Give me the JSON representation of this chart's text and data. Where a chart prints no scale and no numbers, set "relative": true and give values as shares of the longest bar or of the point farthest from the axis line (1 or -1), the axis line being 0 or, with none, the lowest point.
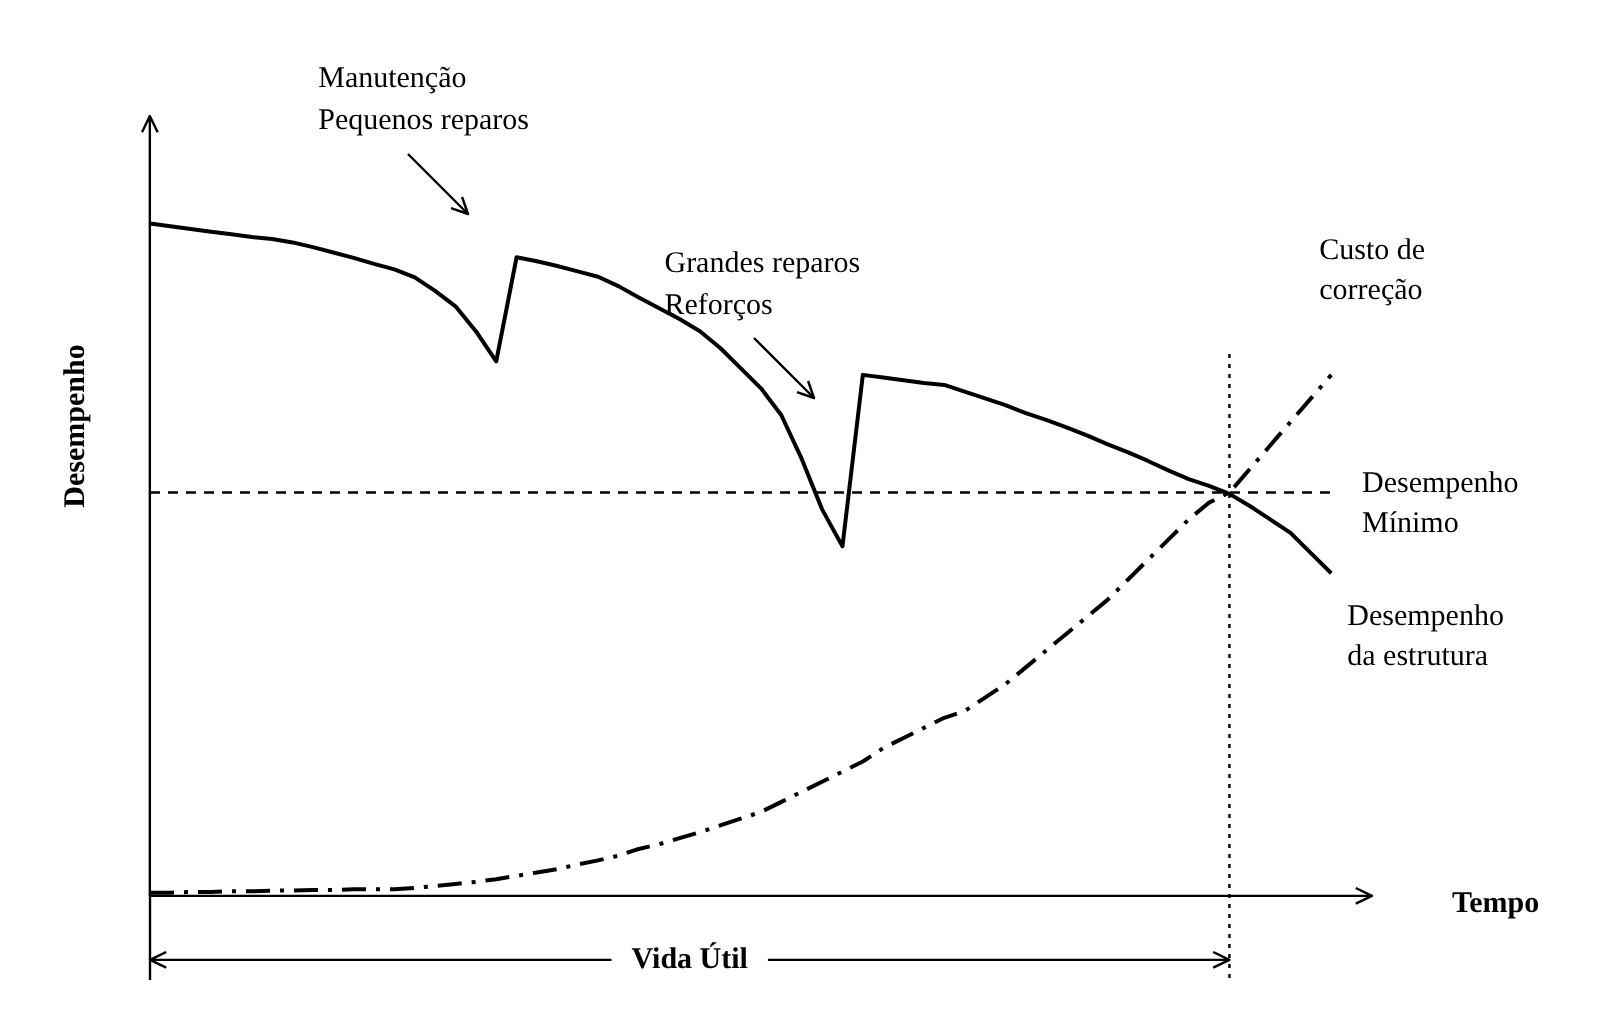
{
  "chart_data": {
    "type": "line",
    "relative": true,
    "xlabel": "Tempo",
    "ylabel": "Desempenho",
    "legend": false,
    "categories": [
      null,
      null,
      null,
      null,
      null,
      null,
      null,
      null,
      null,
      null,
      null,
      null,
      null,
      null,
      null,
      null,
      null,
      null,
      null,
      null,
      null,
      null,
      null,
      null,
      null,
      null,
      null,
      null,
      null,
      null,
      null,
      null,
      null,
      null,
      null,
      null,
      null,
      null,
      null,
      null,
      null,
      null,
      null,
      null,
      null,
      null,
      null,
      null,
      null,
      null,
      null,
      null,
      null,
      null,
      null,
      null,
      null,
      null,
      null,
      null,
      null
    ],
    "series": [
      {
        "name": "Desempenho da estrutura",
        "color": "#000000",
        "line_style": "solid",
        "values": [
          1.0,
          0.996,
          0.992,
          0.988,
          0.984,
          0.98,
          0.977,
          0.972,
          0.965,
          0.957,
          0.949,
          0.94,
          0.932,
          0.92,
          0.9,
          0.877,
          0.84,
          0.795,
          0.95,
          0.944,
          0.937,
          0.929,
          0.921,
          0.907,
          0.89,
          0.874,
          0.858,
          0.84,
          0.815,
          0.785,
          0.755,
          0.715,
          0.65,
          0.575,
          0.52,
          0.775,
          0.771,
          0.767,
          0.763,
          0.76,
          0.75,
          0.74,
          0.73,
          0.718,
          0.708,
          0.697,
          0.685,
          0.672,
          0.66,
          0.647,
          0.633,
          0.62,
          0.61,
          0.598,
          0.58,
          0.56,
          0.54,
          0.51,
          0.48,
          null,
          null
        ]
      },
      {
        "name": "Custo de correção",
        "color": "#000000",
        "line_style": "dashed",
        "values": [
          0.005,
          0.005,
          0.006,
          0.006,
          0.007,
          0.007,
          0.008,
          0.008,
          0.009,
          0.009,
          0.01,
          0.01,
          0.01,
          0.012,
          0.015,
          0.018,
          0.021,
          0.025,
          0.03,
          0.035,
          0.04,
          0.047,
          0.053,
          0.06,
          0.07,
          0.077,
          0.086,
          0.095,
          0.105,
          0.115,
          0.125,
          0.14,
          0.155,
          0.17,
          0.185,
          0.2,
          0.22,
          0.235,
          0.25,
          0.265,
          0.275,
          0.295,
          0.315,
          0.34,
          0.365,
          0.39,
          0.415,
          0.44,
          0.47,
          0.5,
          0.53,
          0.56,
          0.585,
          0.6,
          0.635,
          0.67,
          0.705,
          0.74,
          0.775,
          null,
          null
        ]
      }
    ],
    "ref_lines": [
      {
        "axis": "y",
        "value": 0.6,
        "label": "Desempenho\nMínimo",
        "line_style": "dashed"
      },
      {
        "axis": "x",
        "label": null,
        "line_style": "dotted"
      }
    ],
    "annotations": [
      "Manutenção\nPequenos reparos",
      "Grandes reparos\nReforços",
      "Vida Útil"
    ]
  }
}
